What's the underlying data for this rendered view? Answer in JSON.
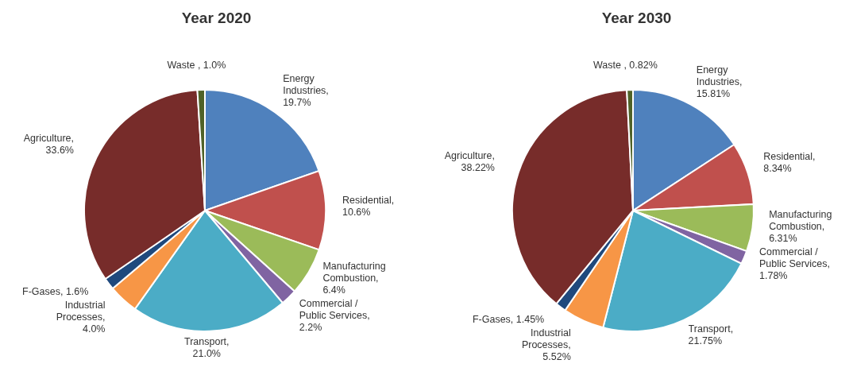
{
  "chart_data": [
    {
      "type": "pie",
      "title": "Year 2020",
      "categories": [
        "Energy Industries",
        "Residential",
        "Manufacturing Combustion",
        "Commercial / Public Services",
        "Transport",
        "Industrial Processes",
        "F-Gases",
        "Agriculture",
        "Waste "
      ],
      "values": [
        19.7,
        10.6,
        6.4,
        2.2,
        21.0,
        4.0,
        1.6,
        33.6,
        1.0
      ],
      "value_labels": [
        ", 19.7%",
        ", 10.6%",
        ", 6.4%",
        ", 2.2%",
        ", 21.0%",
        ", 4.0%",
        ", 1.6%",
        ", 33.6%",
        ", 1.0%"
      ],
      "colors": [
        "#4f81bd",
        "#c0504d",
        "#9bbb59",
        "#8064a2",
        "#4bacc6",
        "#f79646",
        "#1f497d",
        "#772c2a",
        "#4f6228"
      ]
    },
    {
      "type": "pie",
      "title": "Year 2030",
      "categories": [
        "Energy Industries",
        "Residential",
        "Manufacturing Combustion",
        "Commercial / Public Services",
        "Transport",
        "Industrial Processes",
        "F-Gases",
        "Agriculture",
        "Waste "
      ],
      "values": [
        15.81,
        8.34,
        6.31,
        1.78,
        21.75,
        5.52,
        1.45,
        38.22,
        0.82
      ],
      "value_labels": [
        ", 15.81%",
        ", 8.34%",
        ", 6.31%",
        ", 1.78%",
        ", 21.75%",
        ", 5.52%",
        ", 1.45%",
        ", 38.22%",
        ", 0.82%"
      ],
      "colors": [
        "#4f81bd",
        "#c0504d",
        "#9bbb59",
        "#8064a2",
        "#4bacc6",
        "#f79646",
        "#1f497d",
        "#772c2a",
        "#4f6228"
      ]
    }
  ]
}
